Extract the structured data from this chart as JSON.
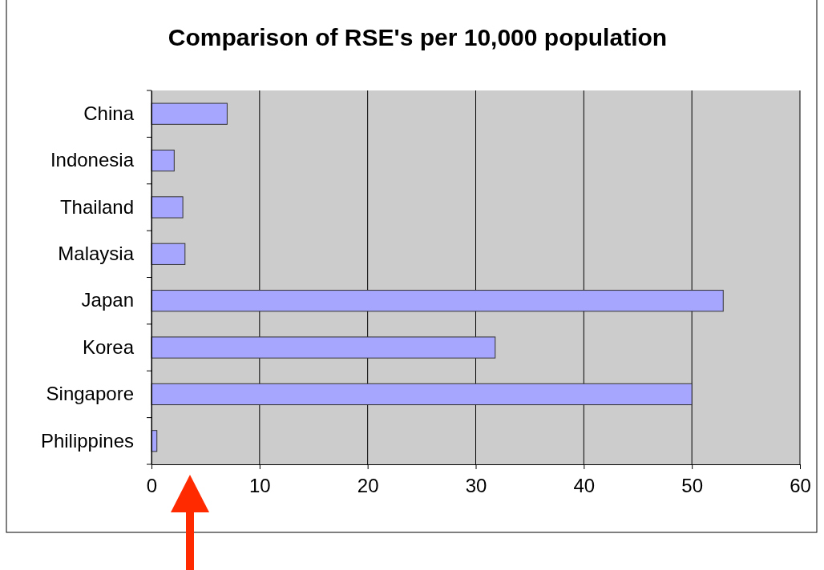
{
  "chart_data": {
    "type": "bar",
    "orientation": "horizontal",
    "title": "Comparison of RSE's per 10,000 population",
    "categories": [
      "China",
      "Indonesia",
      "Thailand",
      "Malaysia",
      "Japan",
      "Korea",
      "Singapore",
      "Philippines"
    ],
    "values": [
      7,
      2.1,
      2.9,
      3.1,
      52.9,
      31.8,
      50,
      0.5
    ],
    "color": "#a6a6ff",
    "xlim": [
      0,
      60
    ],
    "xticks": [
      0,
      10,
      20,
      30,
      40,
      50,
      60
    ],
    "grid": "x"
  }
}
